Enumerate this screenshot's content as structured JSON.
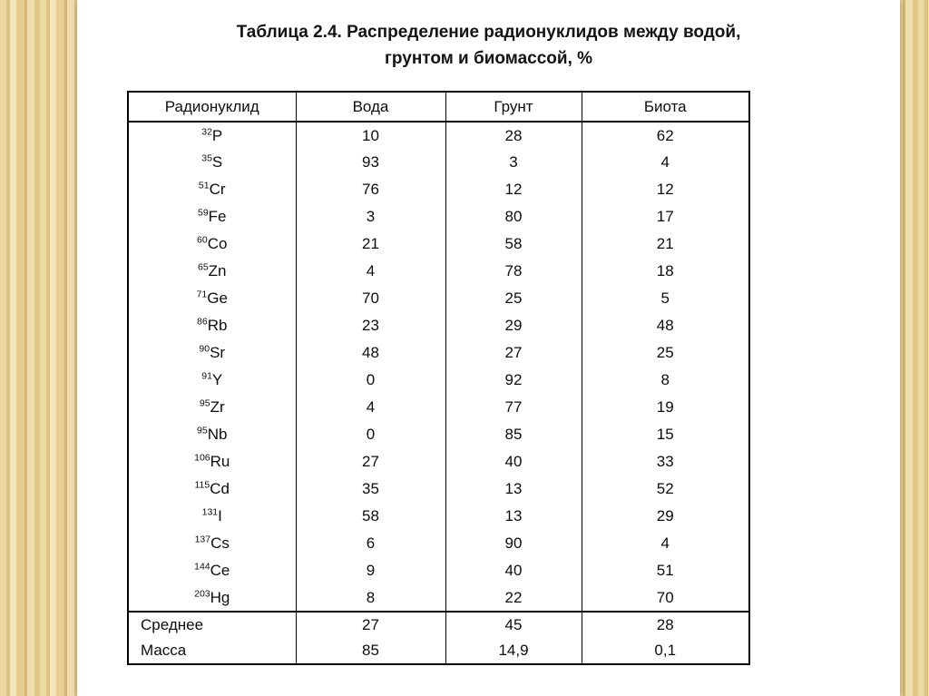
{
  "slide": {
    "title_line1": "Таблица 2.4. Распределение радионуклидов между водой,",
    "title_line2": "грунтом и биомассой, %"
  },
  "table": {
    "columns": [
      "Радионуклид",
      "Вода",
      "Грунт",
      "Биота"
    ],
    "rows": [
      {
        "mass": "32",
        "symbol": "P",
        "water": "10",
        "soil": "28",
        "biota": "62"
      },
      {
        "mass": "35",
        "symbol": "S",
        "water": "93",
        "soil": "3",
        "biota": "4"
      },
      {
        "mass": "51",
        "symbol": "Cr",
        "water": "76",
        "soil": "12",
        "biota": "12"
      },
      {
        "mass": "59",
        "symbol": "Fe",
        "water": "3",
        "soil": "80",
        "biota": "17"
      },
      {
        "mass": "60",
        "symbol": "Co",
        "water": "21",
        "soil": "58",
        "biota": "21"
      },
      {
        "mass": "65",
        "symbol": "Zn",
        "water": "4",
        "soil": "78",
        "biota": "18"
      },
      {
        "mass": "71",
        "symbol": "Ge",
        "water": "70",
        "soil": "25",
        "biota": "5"
      },
      {
        "mass": "86",
        "symbol": "Rb",
        "water": "23",
        "soil": "29",
        "biota": "48"
      },
      {
        "mass": "90",
        "symbol": "Sr",
        "water": "48",
        "soil": "27",
        "biota": "25"
      },
      {
        "mass": "91",
        "symbol": "Y",
        "water": "0",
        "soil": "92",
        "biota": "8"
      },
      {
        "mass": "95",
        "symbol": "Zr",
        "water": "4",
        "soil": "77",
        "biota": "19"
      },
      {
        "mass": "95",
        "symbol": "Nb",
        "water": "0",
        "soil": "85",
        "biota": "15"
      },
      {
        "mass": "106",
        "symbol": "Ru",
        "water": "27",
        "soil": "40",
        "biota": "33"
      },
      {
        "mass": "115",
        "symbol": "Cd",
        "water": "35",
        "soil": "13",
        "biota": "52"
      },
      {
        "mass": "131",
        "symbol": "I",
        "water": "58",
        "soil": "13",
        "biota": "29"
      },
      {
        "mass": "137",
        "symbol": "Cs",
        "water": "6",
        "soil": "90",
        "biota": "4"
      },
      {
        "mass": "144",
        "symbol": "Ce",
        "water": "9",
        "soil": "40",
        "biota": "51"
      },
      {
        "mass": "203",
        "symbol": "Hg",
        "water": "8",
        "soil": "22",
        "biota": "70"
      }
    ],
    "summary_rows": [
      {
        "label": "Среднее",
        "water": "27",
        "soil": "45",
        "biota": "28"
      },
      {
        "label": "Масса",
        "water": "85",
        "soil": "14,9",
        "biota": "0,1"
      }
    ]
  }
}
